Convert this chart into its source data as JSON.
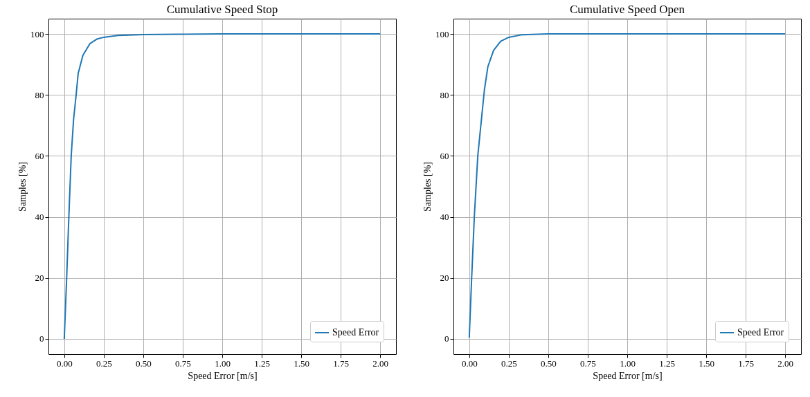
{
  "chart_data": [
    {
      "type": "line",
      "title": "Cumulative Speed Stop",
      "xlabel": "Speed Error [m/s]",
      "ylabel": "Samples [%]",
      "xlim": [
        -0.1,
        2.1
      ],
      "ylim": [
        -5,
        105
      ],
      "xticks": [
        {
          "value": 0,
          "label": "0.00"
        },
        {
          "value": 0.25,
          "label": "0.25"
        },
        {
          "value": 0.5,
          "label": "0.50"
        },
        {
          "value": 0.75,
          "label": "0.75"
        },
        {
          "value": 1,
          "label": "1.00"
        },
        {
          "value": 1.25,
          "label": "1.25"
        },
        {
          "value": 1.5,
          "label": "1.50"
        },
        {
          "value": 1.75,
          "label": "1.75"
        },
        {
          "value": 2,
          "label": "2.00"
        }
      ],
      "yticks": [
        0,
        20,
        40,
        60,
        80,
        100
      ],
      "grid": true,
      "legend": "bottom right",
      "series": [
        {
          "name": "Speed Error",
          "color": "#1f77b4",
          "x": [
            0,
            0.015,
            0.029,
            0.044,
            0.059,
            0.074,
            0.088,
            0.118,
            0.162,
            0.206,
            0.25,
            0.34,
            0.5,
            0.75,
            1,
            1.5,
            2
          ],
          "values": [
            0,
            19.7,
            40,
            60,
            72,
            79.4,
            87,
            93,
            96.8,
            98.3,
            98.9,
            99.5,
            99.8,
            99.9,
            100,
            100,
            100
          ]
        }
      ]
    },
    {
      "type": "line",
      "title": "Cumulative Speed Open",
      "xlabel": "Speed Error [m/s]",
      "ylabel": "Samples [%]",
      "xlim": [
        -0.1,
        2.1
      ],
      "ylim": [
        -5,
        105
      ],
      "xticks": [
        {
          "value": 0,
          "label": "0.00"
        },
        {
          "value": 0.25,
          "label": "0.25"
        },
        {
          "value": 0.5,
          "label": "0.50"
        },
        {
          "value": 0.75,
          "label": "0.75"
        },
        {
          "value": 1,
          "label": "1.00"
        },
        {
          "value": 1.25,
          "label": "1.25"
        },
        {
          "value": 1.5,
          "label": "1.50"
        },
        {
          "value": 1.75,
          "label": "1.75"
        },
        {
          "value": 2,
          "label": "2.00"
        }
      ],
      "yticks": [
        0,
        20,
        40,
        60,
        80,
        100
      ],
      "grid": true,
      "legend": "bottom right",
      "series": [
        {
          "name": "Speed Error",
          "color": "#1f77b4",
          "x": [
            0,
            0.015,
            0.032,
            0.054,
            0.081,
            0.096,
            0.118,
            0.154,
            0.199,
            0.25,
            0.331,
            0.5,
            1,
            1.5,
            2
          ],
          "values": [
            0.4,
            19.7,
            40,
            60,
            74,
            81.7,
            89.3,
            94.6,
            97.6,
            98.9,
            99.7,
            100,
            100,
            100,
            100
          ]
        }
      ]
    }
  ]
}
